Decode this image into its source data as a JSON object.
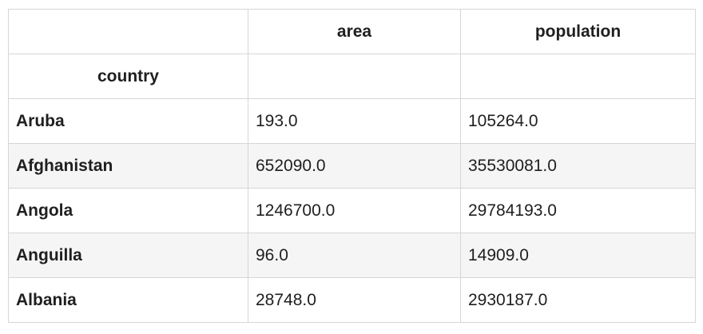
{
  "table": {
    "columns": [
      "",
      "area",
      "population"
    ],
    "index_name": "country",
    "rows": [
      {
        "country": "Aruba",
        "area": "193.0",
        "population": "105264.0"
      },
      {
        "country": "Afghanistan",
        "area": "652090.0",
        "population": "35530081.0"
      },
      {
        "country": "Angola",
        "area": "1246700.0",
        "population": "29784193.0"
      },
      {
        "country": "Anguilla",
        "area": "96.0",
        "population": "14909.0"
      },
      {
        "country": "Albania",
        "area": "28748.0",
        "population": "2930187.0"
      }
    ]
  },
  "colors": {
    "border": "#d6d6d6",
    "stripe": "#f5f5f5",
    "text": "#1f1f1f"
  }
}
